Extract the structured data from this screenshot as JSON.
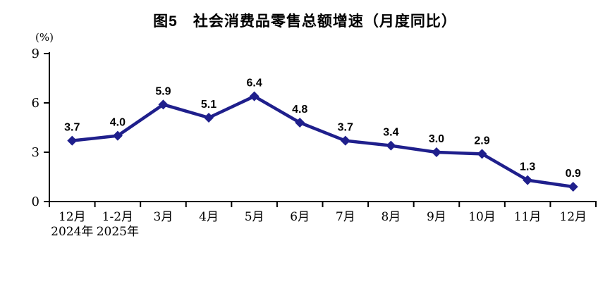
{
  "page": {
    "background": "#ffffff"
  },
  "chart_data": {
    "type": "line",
    "title": "图5　社会消费品零售总额增速（月度同比）",
    "unit_label": "(%)",
    "categories": [
      "12月",
      "1-2月",
      "3月",
      "4月",
      "5月",
      "6月",
      "7月",
      "8月",
      "9月",
      "10月",
      "11月",
      "12月"
    ],
    "category_sublabels": [
      "2024年",
      "2025年",
      "",
      "",
      "",
      "",
      "",
      "",
      "",
      "",
      "",
      ""
    ],
    "values": [
      3.7,
      4.0,
      5.9,
      5.1,
      6.4,
      4.8,
      3.7,
      3.4,
      3.0,
      2.9,
      1.3,
      0.9
    ],
    "value_labels": [
      "3.7",
      "4.0",
      "5.9",
      "5.1",
      "6.4",
      "4.8",
      "3.7",
      "3.4",
      "3.0",
      "2.9",
      "1.3",
      "0.9"
    ],
    "ylim": [
      0,
      9
    ],
    "yticks": [
      0,
      3,
      6,
      9
    ],
    "xlabel": "",
    "ylabel": "(%)",
    "grid": false,
    "legend": false,
    "line_color": "#1f1f8c",
    "marker": "diamond",
    "axis_color": "#000000",
    "label_color": "#000000"
  }
}
